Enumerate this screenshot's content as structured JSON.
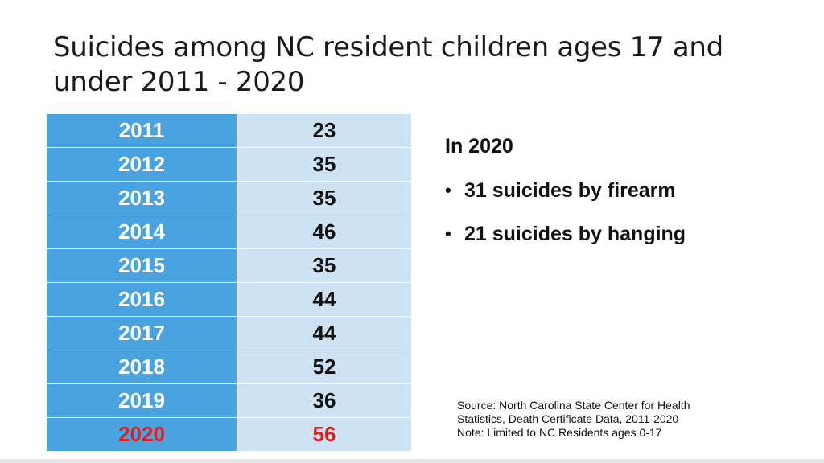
{
  "slide": {
    "title": "Suicides among NC resident children ages 17 and under 2011 - 2020",
    "table": {
      "rows": [
        {
          "year": "2011",
          "value": "23"
        },
        {
          "year": "2012",
          "value": "35"
        },
        {
          "year": "2013",
          "value": "35"
        },
        {
          "year": "2014",
          "value": "46"
        },
        {
          "year": "2015",
          "value": "35"
        },
        {
          "year": "2016",
          "value": "44"
        },
        {
          "year": "2017",
          "value": "44"
        },
        {
          "year": "2018",
          "value": "52"
        },
        {
          "year": "2019",
          "value": "36"
        },
        {
          "year": "2020",
          "value": "56"
        }
      ]
    },
    "side": {
      "heading": "In 2020",
      "bullets": [
        "31 suicides by firearm",
        "21 suicides by hanging"
      ]
    },
    "source": {
      "line1": "Source: North Carolina State Center for Health",
      "line2": "Statistics, Death Certificate Data, 2011-2020",
      "line3": "Note: Limited to NC Residents ages 0-17"
    },
    "colors": {
      "year_cell": "#4aa3df",
      "value_cell": "#cde3f4",
      "highlight": "#e02020"
    }
  }
}
